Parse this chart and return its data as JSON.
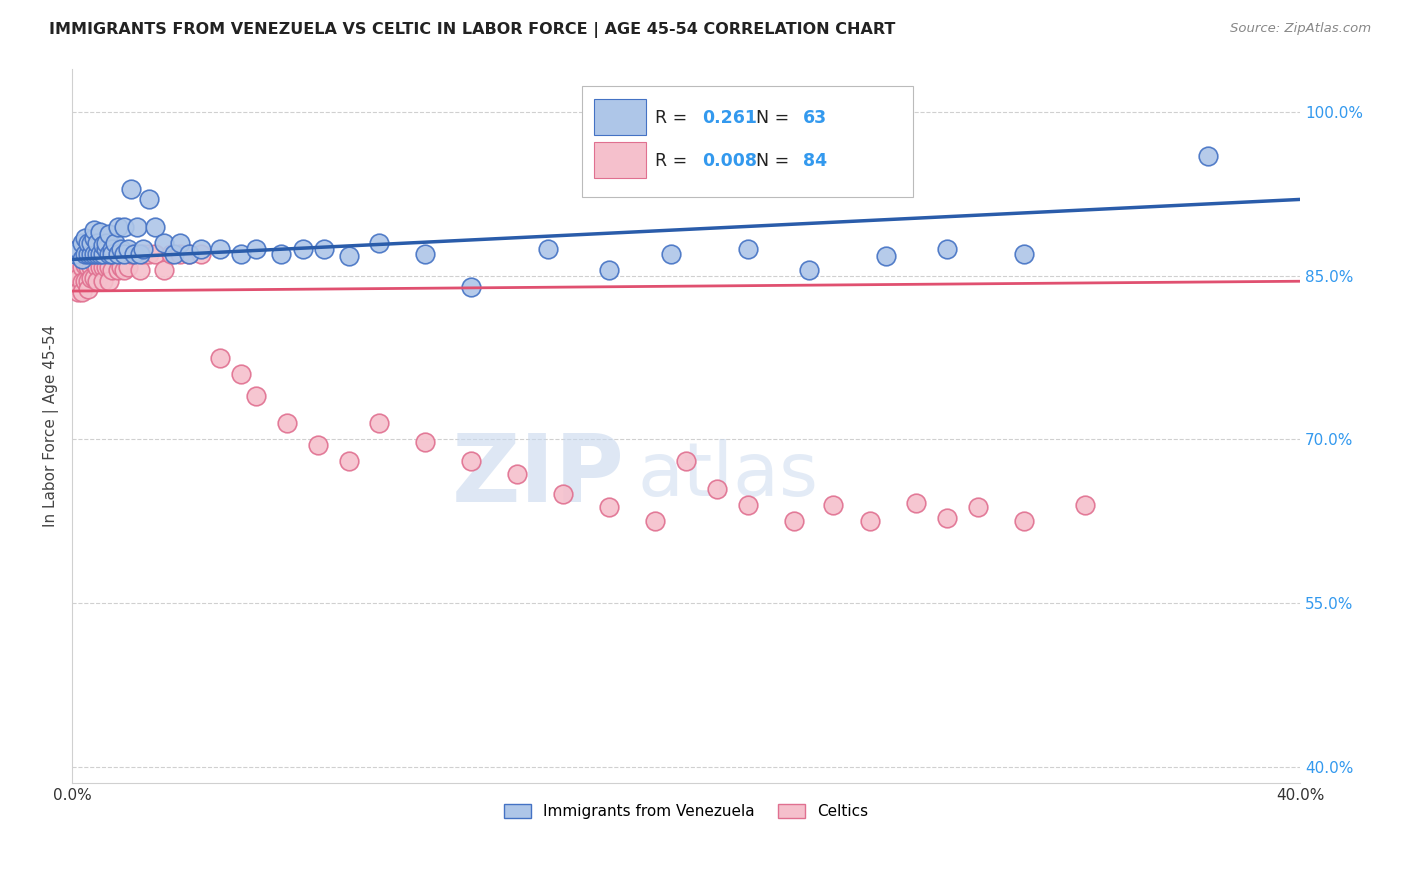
{
  "title": "IMMIGRANTS FROM VENEZUELA VS CELTIC IN LABOR FORCE | AGE 45-54 CORRELATION CHART",
  "source": "Source: ZipAtlas.com",
  "ylabel": "In Labor Force | Age 45-54",
  "xlim": [
    0.0,
    0.4
  ],
  "ylim": [
    0.385,
    1.04
  ],
  "xticks": [
    0.0,
    0.08,
    0.16,
    0.24,
    0.32,
    0.4
  ],
  "xticklabels": [
    "0.0%",
    "",
    "",
    "",
    "",
    "40.0%"
  ],
  "yticks": [
    0.4,
    0.55,
    0.7,
    0.85,
    1.0
  ],
  "yticklabels": [
    "40.0%",
    "55.0%",
    "70.0%",
    "85.0%",
    "100.0%"
  ],
  "legend": {
    "R_blue": "0.261",
    "N_blue": "63",
    "R_pink": "0.008",
    "N_pink": "84"
  },
  "blue_scatter": {
    "x": [
      0.001,
      0.002,
      0.003,
      0.003,
      0.004,
      0.004,
      0.005,
      0.005,
      0.006,
      0.006,
      0.007,
      0.007,
      0.007,
      0.008,
      0.008,
      0.009,
      0.009,
      0.01,
      0.01,
      0.011,
      0.011,
      0.012,
      0.012,
      0.013,
      0.013,
      0.014,
      0.015,
      0.015,
      0.016,
      0.017,
      0.017,
      0.018,
      0.019,
      0.02,
      0.021,
      0.022,
      0.023,
      0.025,
      0.027,
      0.03,
      0.033,
      0.035,
      0.038,
      0.042,
      0.048,
      0.055,
      0.06,
      0.068,
      0.075,
      0.082,
      0.09,
      0.1,
      0.115,
      0.13,
      0.155,
      0.175,
      0.195,
      0.22,
      0.24,
      0.265,
      0.285,
      0.31,
      0.37
    ],
    "y": [
      0.87,
      0.875,
      0.865,
      0.88,
      0.87,
      0.885,
      0.87,
      0.88,
      0.87,
      0.88,
      0.87,
      0.885,
      0.892,
      0.87,
      0.88,
      0.87,
      0.89,
      0.87,
      0.878,
      0.875,
      0.88,
      0.87,
      0.888,
      0.875,
      0.87,
      0.88,
      0.87,
      0.895,
      0.875,
      0.87,
      0.895,
      0.875,
      0.93,
      0.87,
      0.895,
      0.87,
      0.875,
      0.92,
      0.895,
      0.88,
      0.87,
      0.88,
      0.87,
      0.875,
      0.875,
      0.87,
      0.875,
      0.87,
      0.875,
      0.875,
      0.868,
      0.88,
      0.87,
      0.84,
      0.875,
      0.855,
      0.87,
      0.875,
      0.855,
      0.868,
      0.875,
      0.87,
      0.96
    ]
  },
  "pink_scatter": {
    "x": [
      0.001,
      0.001,
      0.001,
      0.002,
      0.002,
      0.002,
      0.002,
      0.003,
      0.003,
      0.003,
      0.003,
      0.004,
      0.004,
      0.004,
      0.005,
      0.005,
      0.005,
      0.005,
      0.006,
      0.006,
      0.006,
      0.007,
      0.007,
      0.007,
      0.008,
      0.008,
      0.008,
      0.009,
      0.009,
      0.01,
      0.01,
      0.01,
      0.011,
      0.011,
      0.012,
      0.012,
      0.012,
      0.013,
      0.013,
      0.014,
      0.015,
      0.015,
      0.016,
      0.016,
      0.017,
      0.017,
      0.018,
      0.018,
      0.019,
      0.02,
      0.021,
      0.022,
      0.023,
      0.025,
      0.027,
      0.03,
      0.032,
      0.035,
      0.038,
      0.042,
      0.048,
      0.055,
      0.06,
      0.07,
      0.08,
      0.09,
      0.1,
      0.115,
      0.13,
      0.145,
      0.16,
      0.175,
      0.19,
      0.2,
      0.21,
      0.22,
      0.235,
      0.248,
      0.26,
      0.275,
      0.285,
      0.295,
      0.31,
      0.33
    ],
    "y": [
      0.87,
      0.855,
      0.84,
      0.875,
      0.86,
      0.848,
      0.835,
      0.87,
      0.858,
      0.844,
      0.835,
      0.875,
      0.86,
      0.845,
      0.87,
      0.858,
      0.845,
      0.838,
      0.87,
      0.858,
      0.848,
      0.875,
      0.862,
      0.848,
      0.87,
      0.858,
      0.845,
      0.87,
      0.858,
      0.87,
      0.858,
      0.845,
      0.87,
      0.858,
      0.87,
      0.858,
      0.845,
      0.87,
      0.855,
      0.87,
      0.87,
      0.855,
      0.87,
      0.858,
      0.87,
      0.855,
      0.87,
      0.858,
      0.87,
      0.87,
      0.87,
      0.855,
      0.87,
      0.87,
      0.87,
      0.855,
      0.87,
      0.87,
      0.87,
      0.87,
      0.775,
      0.76,
      0.74,
      0.715,
      0.695,
      0.68,
      0.715,
      0.698,
      0.68,
      0.668,
      0.65,
      0.638,
      0.625,
      0.68,
      0.655,
      0.64,
      0.625,
      0.64,
      0.625,
      0.642,
      0.628,
      0.638,
      0.625,
      0.64
    ]
  },
  "blue_line": {
    "x0": 0.0,
    "x1": 0.4,
    "y0": 0.865,
    "y1": 0.92
  },
  "pink_line": {
    "x0": 0.0,
    "x1": 0.4,
    "y0": 0.836,
    "y1": 0.845
  },
  "colors": {
    "blue_fill": "#aec6e8",
    "blue_edge": "#4472c4",
    "pink_fill": "#f5c0cc",
    "pink_edge": "#e07090",
    "blue_line": "#2a5caa",
    "pink_line": "#e05070",
    "grid": "#d0d0d0",
    "watermark": "#c8d8ee"
  }
}
